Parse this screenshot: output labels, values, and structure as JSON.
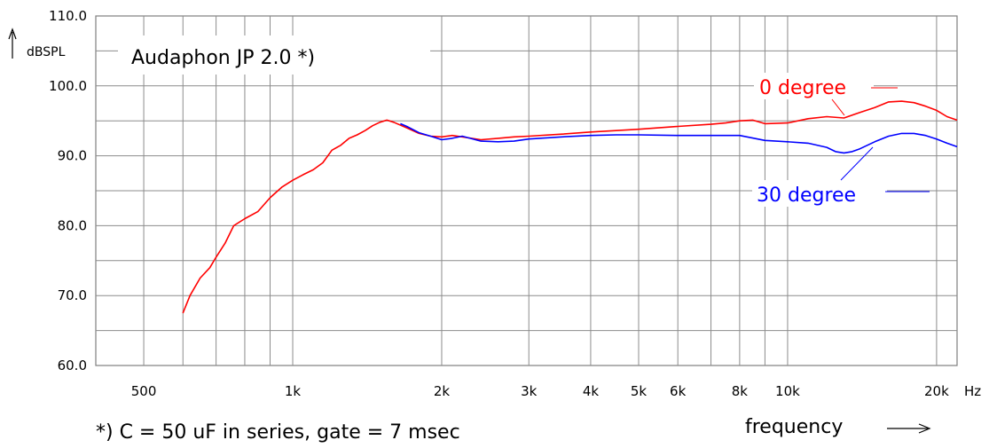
{
  "chart_data": {
    "type": "line",
    "title": "Audaphon JP 2.0 *)",
    "ylabel": "dBSPL",
    "xlabel": "frequency",
    "x_unit": "Hz",
    "footnote": "*) C = 50 uF in series, gate = 7 msec",
    "x_scale": "log",
    "xlim": [
      400,
      22000
    ],
    "ylim": [
      60,
      110
    ],
    "grid": true,
    "y_ticks": [
      "60.0",
      "70.0",
      "80.0",
      "90.0",
      "100.0",
      "110.0"
    ],
    "x_ticks": [
      {
        "label": "500",
        "value": 500
      },
      {
        "label": "1k",
        "value": 1000
      },
      {
        "label": "2k",
        "value": 2000
      },
      {
        "label": "3k",
        "value": 3000
      },
      {
        "label": "4k",
        "value": 4000
      },
      {
        "label": "5k",
        "value": 5000
      },
      {
        "label": "6k",
        "value": 6000
      },
      {
        "label": "8k",
        "value": 8000
      },
      {
        "label": "10k",
        "value": 10000
      },
      {
        "label": "20k",
        "value": 20000
      }
    ],
    "series": [
      {
        "name": "0 degree",
        "color": "#ff0000",
        "x": [
          600,
          620,
          650,
          680,
          700,
          730,
          760,
          800,
          850,
          900,
          950,
          1000,
          1050,
          1100,
          1150,
          1200,
          1250,
          1300,
          1350,
          1400,
          1450,
          1500,
          1550,
          1600,
          1700,
          1800,
          1900,
          2000,
          2100,
          2200,
          2400,
          2600,
          2800,
          3000,
          3500,
          4000,
          4500,
          5000,
          6000,
          7000,
          7500,
          8000,
          8500,
          9000,
          10000,
          11000,
          12000,
          13000,
          14000,
          15000,
          16000,
          17000,
          18000,
          19000,
          20000,
          21000,
          22000
        ],
        "y": [
          67.5,
          70,
          72.5,
          74,
          75.5,
          77.5,
          80,
          81,
          82,
          84,
          85.5,
          86.5,
          87.3,
          88,
          89,
          90.8,
          91.5,
          92.5,
          93,
          93.6,
          94.3,
          94.8,
          95.1,
          94.8,
          94,
          93.2,
          92.8,
          92.7,
          92.9,
          92.7,
          92.3,
          92.5,
          92.7,
          92.8,
          93.1,
          93.4,
          93.6,
          93.8,
          94.2,
          94.5,
          94.7,
          95.0,
          95.1,
          94.6,
          94.7,
          95.3,
          95.6,
          95.4,
          96.2,
          96.9,
          97.7,
          97.8,
          97.6,
          97.1,
          96.5,
          95.6,
          95.1
        ]
      },
      {
        "name": "30 degree",
        "color": "#0000ff",
        "x": [
          1650,
          1700,
          1800,
          1900,
          2000,
          2100,
          2200,
          2400,
          2600,
          2800,
          3000,
          3500,
          4000,
          4500,
          5000,
          6000,
          7000,
          8000,
          9000,
          10000,
          11000,
          12000,
          12500,
          13000,
          13500,
          14000,
          15000,
          16000,
          17000,
          18000,
          19000,
          20000,
          21000,
          22000
        ],
        "y": [
          94.6,
          94.2,
          93.3,
          92.8,
          92.3,
          92.5,
          92.8,
          92.1,
          92.0,
          92.1,
          92.4,
          92.7,
          92.9,
          93.0,
          93.0,
          92.9,
          92.9,
          92.9,
          92.2,
          92.0,
          91.8,
          91.2,
          90.6,
          90.4,
          90.6,
          91.0,
          92.0,
          92.8,
          93.2,
          93.2,
          92.9,
          92.4,
          91.8,
          91.3
        ]
      }
    ]
  }
}
